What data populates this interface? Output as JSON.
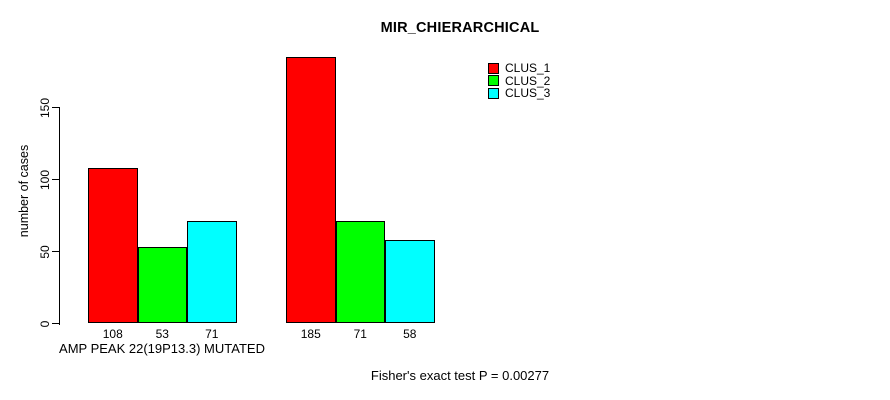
{
  "title": "MIR_CHIERARCHICAL",
  "chart_data": {
    "type": "bar",
    "title": "MIR_CHIERARCHICAL",
    "ylabel": "number of cases",
    "xlabel": "",
    "ylim": [
      0,
      190
    ],
    "yticks": [
      0,
      50,
      100,
      150
    ],
    "grid": false,
    "legend_position": "top-right",
    "series": [
      {
        "name": "CLUS_1",
        "color": "#ff0000"
      },
      {
        "name": "CLUS_2",
        "color": "#00ff00"
      },
      {
        "name": "CLUS_3",
        "color": "#00ffff"
      }
    ],
    "groups": [
      {
        "label": "AMP PEAK 22(19P13.3) MUTATED",
        "values": [
          108,
          53,
          71
        ]
      },
      {
        "label": "",
        "values": [
          185,
          71,
          58
        ]
      }
    ]
  },
  "footer": {
    "stat_text": "Fisher's exact test P = 0.00277"
  }
}
